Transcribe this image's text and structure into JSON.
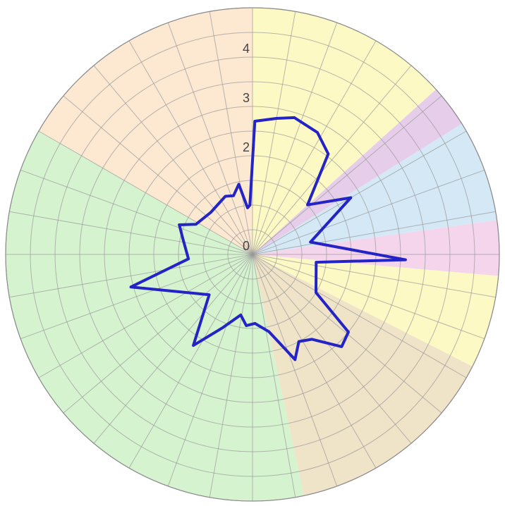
{
  "chart_data": {
    "type": "radar",
    "title": "",
    "radial_axis": {
      "range": [
        0,
        5
      ],
      "ticks": [
        0,
        1,
        2,
        3,
        4
      ],
      "tick_labels": [
        "0",
        "",
        "2",
        "3",
        "4"
      ],
      "grid_step": 0.5
    },
    "angular_divisions": 36,
    "sectors": [
      {
        "from_deg": 90,
        "to_deg": 150,
        "color": "#fde8d2"
      },
      {
        "from_deg": 150,
        "to_deg": 282,
        "color": "#d6f3d0"
      },
      {
        "from_deg": 282,
        "to_deg": 333,
        "color": "#efe3c8"
      },
      {
        "from_deg": 333,
        "to_deg": 355,
        "color": "#fdf9c4"
      },
      {
        "from_deg": 355,
        "to_deg": 368,
        "color": "#f5d5ec"
      },
      {
        "from_deg": 8,
        "to_deg": 32,
        "color": "#d4e8f6"
      },
      {
        "from_deg": 32,
        "to_deg": 42,
        "color": "#e6cdea"
      },
      {
        "from_deg": 42,
        "to_deg": 90,
        "color": "#fdf9c4"
      }
    ],
    "series": [
      {
        "color": "#2323c6",
        "points": [
          {
            "angle": 89,
            "r": 2.7
          },
          {
            "angle": 80,
            "r": 2.8
          },
          {
            "angle": 73,
            "r": 2.9
          },
          {
            "angle": 62,
            "r": 2.8
          },
          {
            "angle": 53,
            "r": 2.55
          },
          {
            "angle": 42,
            "r": 1.5
          },
          {
            "angle": 30,
            "r": 2.3
          },
          {
            "angle": 12,
            "r": 1.2
          },
          {
            "angle": -2,
            "r": 3.1
          },
          {
            "angle": -7,
            "r": 1.3
          },
          {
            "angle": -31,
            "r": 1.5
          },
          {
            "angle": -39,
            "r": 2.5
          },
          {
            "angle": -46,
            "r": 2.6
          },
          {
            "angle": -55,
            "r": 2.1
          },
          {
            "angle": -62,
            "r": 2.0
          },
          {
            "angle": -68,
            "r": 2.3
          },
          {
            "angle": -78,
            "r": 1.6
          },
          {
            "angle": -88,
            "r": 1.4
          },
          {
            "angle": -95,
            "r": 1.45
          },
          {
            "angle": -101,
            "r": 1.25
          },
          {
            "angle": -112,
            "r": 1.6
          },
          {
            "angle": -123,
            "r": 2.2
          },
          {
            "angle": -137,
            "r": 1.2
          },
          {
            "angle": -165,
            "r": 2.55
          },
          {
            "angle": -176,
            "r": 1.3
          },
          {
            "angle": 167,
            "r": 1.45
          },
          {
            "angle": 158,
            "r": 1.6
          },
          {
            "angle": 152,
            "r": 1.3
          },
          {
            "angle": 135,
            "r": 1.2
          },
          {
            "angle": 115,
            "r": 1.3
          },
          {
            "angle": 108,
            "r": 1.25
          },
          {
            "angle": 101,
            "r": 1.45
          },
          {
            "angle": 96,
            "r": 0.95
          },
          {
            "angle": 93,
            "r": 1.0
          }
        ]
      }
    ],
    "grid": true,
    "legend": "none"
  }
}
